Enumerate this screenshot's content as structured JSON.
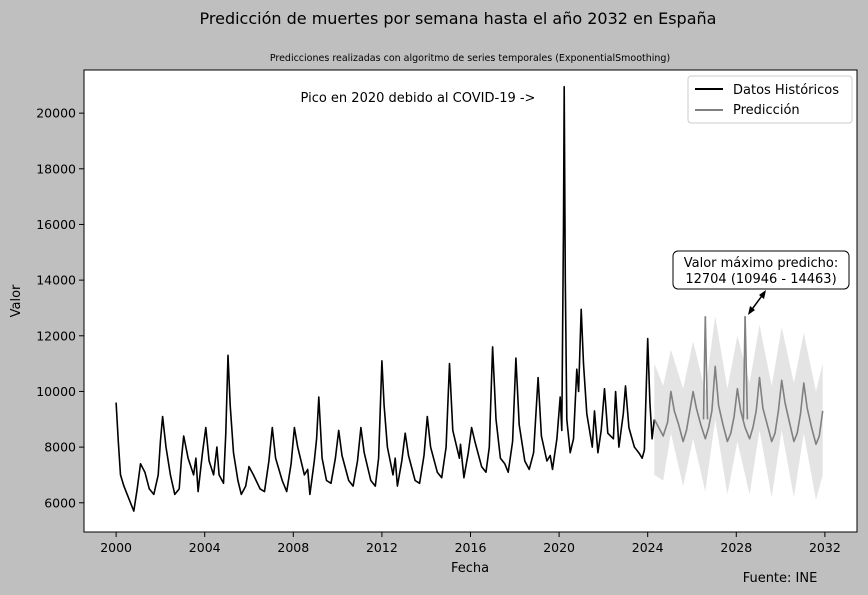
{
  "chart_data": {
    "type": "line",
    "title": "Predicción de muertes por semana hasta el año 2032 en España",
    "subtitle": "Predicciones realizadas con algoritmo de series temporales (ExponentialSmoothing)",
    "xlabel": "Fecha",
    "ylabel": "Valor",
    "xlim": [
      1998.55,
      2033.45
    ],
    "ylim": [
      4950,
      21550
    ],
    "x_ticks": [
      "2000",
      "2004",
      "2008",
      "2012",
      "2016",
      "2020",
      "2024",
      "2028",
      "2032"
    ],
    "y_ticks": [
      "6000",
      "8000",
      "10000",
      "12000",
      "14000",
      "16000",
      "18000",
      "20000"
    ],
    "grid": false,
    "legend_position": "top-right",
    "series": [
      {
        "name": "Datos Históricos",
        "color": "#000000",
        "points": [
          [
            2000.0,
            9600
          ],
          [
            2000.1,
            8200
          ],
          [
            2000.2,
            7000
          ],
          [
            2000.35,
            6600
          ],
          [
            2000.5,
            6300
          ],
          [
            2000.65,
            6000
          ],
          [
            2000.8,
            5700
          ],
          [
            2000.95,
            6500
          ],
          [
            2001.1,
            7400
          ],
          [
            2001.3,
            7100
          ],
          [
            2001.5,
            6500
          ],
          [
            2001.7,
            6300
          ],
          [
            2001.9,
            7000
          ],
          [
            2002.0,
            8200
          ],
          [
            2002.1,
            9100
          ],
          [
            2002.25,
            8000
          ],
          [
            2002.45,
            7000
          ],
          [
            2002.65,
            6300
          ],
          [
            2002.85,
            6500
          ],
          [
            2002.95,
            7600
          ],
          [
            2003.05,
            8400
          ],
          [
            2003.25,
            7600
          ],
          [
            2003.5,
            7000
          ],
          [
            2003.6,
            7600
          ],
          [
            2003.7,
            6400
          ],
          [
            2003.9,
            7800
          ],
          [
            2004.05,
            8700
          ],
          [
            2004.2,
            7500
          ],
          [
            2004.4,
            7000
          ],
          [
            2004.55,
            8000
          ],
          [
            2004.65,
            7000
          ],
          [
            2004.85,
            6700
          ],
          [
            2004.95,
            8500
          ],
          [
            2005.05,
            11300
          ],
          [
            2005.15,
            9500
          ],
          [
            2005.3,
            7800
          ],
          [
            2005.5,
            6800
          ],
          [
            2005.65,
            6300
          ],
          [
            2005.85,
            6600
          ],
          [
            2006.0,
            7300
          ],
          [
            2006.2,
            7000
          ],
          [
            2006.5,
            6500
          ],
          [
            2006.7,
            6400
          ],
          [
            2006.9,
            7500
          ],
          [
            2007.05,
            8700
          ],
          [
            2007.2,
            7600
          ],
          [
            2007.5,
            6800
          ],
          [
            2007.7,
            6400
          ],
          [
            2007.9,
            7400
          ],
          [
            2008.05,
            8700
          ],
          [
            2008.2,
            8000
          ],
          [
            2008.5,
            7000
          ],
          [
            2008.65,
            7200
          ],
          [
            2008.75,
            6300
          ],
          [
            2008.95,
            7500
          ],
          [
            2009.05,
            8300
          ],
          [
            2009.15,
            9800
          ],
          [
            2009.3,
            7600
          ],
          [
            2009.5,
            6800
          ],
          [
            2009.7,
            6700
          ],
          [
            2009.9,
            7600
          ],
          [
            2010.05,
            8600
          ],
          [
            2010.2,
            7700
          ],
          [
            2010.5,
            6800
          ],
          [
            2010.7,
            6600
          ],
          [
            2010.9,
            7500
          ],
          [
            2011.05,
            8700
          ],
          [
            2011.2,
            7800
          ],
          [
            2011.5,
            6800
          ],
          [
            2011.7,
            6600
          ],
          [
            2011.85,
            7600
          ],
          [
            2012.0,
            11100
          ],
          [
            2012.1,
            9500
          ],
          [
            2012.25,
            8000
          ],
          [
            2012.5,
            7000
          ],
          [
            2012.6,
            7600
          ],
          [
            2012.7,
            6600
          ],
          [
            2012.9,
            7500
          ],
          [
            2013.05,
            8500
          ],
          [
            2013.2,
            7700
          ],
          [
            2013.5,
            6800
          ],
          [
            2013.7,
            6700
          ],
          [
            2013.9,
            7700
          ],
          [
            2014.05,
            9100
          ],
          [
            2014.2,
            8000
          ],
          [
            2014.5,
            7100
          ],
          [
            2014.7,
            6900
          ],
          [
            2014.9,
            8000
          ],
          [
            2015.05,
            11000
          ],
          [
            2015.2,
            8600
          ],
          [
            2015.5,
            7600
          ],
          [
            2015.55,
            8100
          ],
          [
            2015.7,
            6900
          ],
          [
            2015.9,
            7800
          ],
          [
            2016.05,
            8700
          ],
          [
            2016.2,
            8200
          ],
          [
            2016.5,
            7300
          ],
          [
            2016.7,
            7100
          ],
          [
            2016.85,
            8000
          ],
          [
            2017.0,
            11600
          ],
          [
            2017.15,
            9000
          ],
          [
            2017.35,
            7600
          ],
          [
            2017.55,
            7400
          ],
          [
            2017.7,
            7100
          ],
          [
            2017.9,
            8200
          ],
          [
            2018.05,
            11200
          ],
          [
            2018.2,
            8800
          ],
          [
            2018.45,
            7500
          ],
          [
            2018.65,
            7200
          ],
          [
            2018.85,
            7800
          ],
          [
            2019.05,
            10500
          ],
          [
            2019.2,
            8400
          ],
          [
            2019.45,
            7500
          ],
          [
            2019.6,
            7700
          ],
          [
            2019.7,
            7200
          ],
          [
            2019.9,
            8300
          ],
          [
            2020.05,
            9800
          ],
          [
            2020.12,
            8600
          ],
          [
            2020.2,
            16000
          ],
          [
            2020.23,
            20950
          ],
          [
            2020.28,
            14000
          ],
          [
            2020.35,
            9000
          ],
          [
            2020.5,
            7800
          ],
          [
            2020.65,
            8300
          ],
          [
            2020.8,
            10800
          ],
          [
            2020.88,
            10000
          ],
          [
            2021.0,
            12950
          ],
          [
            2021.1,
            11000
          ],
          [
            2021.25,
            9200
          ],
          [
            2021.5,
            8000
          ],
          [
            2021.6,
            9300
          ],
          [
            2021.75,
            7800
          ],
          [
            2021.9,
            8600
          ],
          [
            2022.05,
            10100
          ],
          [
            2022.2,
            8500
          ],
          [
            2022.45,
            8300
          ],
          [
            2022.55,
            10000
          ],
          [
            2022.7,
            8000
          ],
          [
            2022.9,
            9200
          ],
          [
            2023.0,
            10200
          ],
          [
            2023.15,
            8700
          ],
          [
            2023.4,
            8000
          ],
          [
            2023.6,
            7800
          ],
          [
            2023.75,
            7600
          ],
          [
            2023.85,
            7900
          ],
          [
            2024.0,
            11900
          ],
          [
            2024.1,
            9600
          ],
          [
            2024.2,
            8300
          ],
          [
            2024.3,
            9000
          ]
        ]
      },
      {
        "name": "Predicción",
        "color": "#808080",
        "points": [
          [
            2024.3,
            9000
          ],
          [
            2024.5,
            8700
          ],
          [
            2024.7,
            8400
          ],
          [
            2024.9,
            8900
          ],
          [
            2025.05,
            10000
          ],
          [
            2025.2,
            9300
          ],
          [
            2025.4,
            8800
          ],
          [
            2025.6,
            8200
          ],
          [
            2025.75,
            8600
          ],
          [
            2025.9,
            9300
          ],
          [
            2026.05,
            10000
          ],
          [
            2026.2,
            9400
          ],
          [
            2026.4,
            8800
          ],
          [
            2026.6,
            8300
          ],
          [
            2026.75,
            8700
          ],
          [
            2026.9,
            9300
          ],
          [
            2027.05,
            10900
          ],
          [
            2027.2,
            9500
          ],
          [
            2027.4,
            8800
          ],
          [
            2027.6,
            8200
          ],
          [
            2027.75,
            8500
          ],
          [
            2027.9,
            9100
          ],
          [
            2028.05,
            10100
          ],
          [
            2028.2,
            9300
          ],
          [
            2028.4,
            8700
          ],
          [
            2028.6,
            8300
          ],
          [
            2028.75,
            8700
          ],
          [
            2028.9,
            9300
          ],
          [
            2029.05,
            10500
          ],
          [
            2029.2,
            9400
          ],
          [
            2029.4,
            8800
          ],
          [
            2029.6,
            8200
          ],
          [
            2029.75,
            8500
          ],
          [
            2029.9,
            9300
          ],
          [
            2030.05,
            10400
          ],
          [
            2030.2,
            9600
          ],
          [
            2030.4,
            8900
          ],
          [
            2030.6,
            8200
          ],
          [
            2030.75,
            8500
          ],
          [
            2030.9,
            9200
          ],
          [
            2031.05,
            10300
          ],
          [
            2031.2,
            9400
          ],
          [
            2031.4,
            8700
          ],
          [
            2031.6,
            8100
          ],
          [
            2031.75,
            8400
          ],
          [
            2031.9,
            9300
          ]
        ],
        "band": [
          [
            2024.3,
            7000,
            11000
          ],
          [
            2024.7,
            6800,
            10200
          ],
          [
            2025.05,
            8500,
            11500
          ],
          [
            2025.6,
            6600,
            10100
          ],
          [
            2026.05,
            8300,
            11800
          ],
          [
            2026.6,
            6400,
            10000
          ],
          [
            2027.05,
            9000,
            12700
          ],
          [
            2027.6,
            6300,
            10100
          ],
          [
            2028.05,
            8200,
            12000
          ],
          [
            2028.6,
            6300,
            10300
          ],
          [
            2029.05,
            8600,
            12400
          ],
          [
            2029.6,
            6200,
            10200
          ],
          [
            2030.05,
            8600,
            12300
          ],
          [
            2030.6,
            6200,
            10300
          ],
          [
            2031.05,
            8500,
            12100
          ],
          [
            2031.6,
            6100,
            10000
          ],
          [
            2031.9,
            7000,
            11000
          ]
        ],
        "peaks": [
          [
            2026.6,
            12700
          ],
          [
            2028.4,
            12700
          ]
        ]
      }
    ],
    "annotations": {
      "covid_note": "Pico en 2020 debido al COVID-19 ->",
      "max_label_line1": "Valor máximo predicho:",
      "max_label_line2": "12704 (10946 - 14463)"
    },
    "source": "Fuente: INE"
  }
}
